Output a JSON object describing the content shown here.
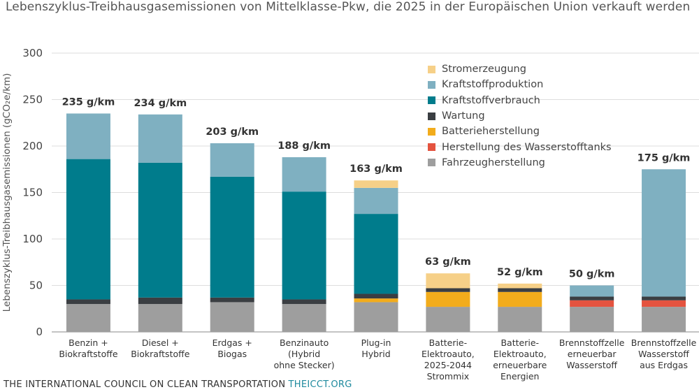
{
  "title": "Lebenszyklus-Treibhausgasemissionen von Mittelklasse-Pkw, die 2025 in der Europäischen Union verkauft werden",
  "footer": {
    "org": "THE INTERNATIONAL COUNCIL ON CLEAN TRANSPORTATION",
    "url": "THEICCT.ORG"
  },
  "chart_data": {
    "type": "bar",
    "stacked": true,
    "ylabel": "Lebenszyklus-Treibhausgasemissionen (gCO₂e/km)",
    "ylim": [
      0,
      300
    ],
    "yticks": [
      "0",
      "50",
      "100",
      "150",
      "200",
      "250",
      "300"
    ],
    "categories": [
      [
        "Benzin +",
        "Biokraftstoffe"
      ],
      [
        "Diesel +",
        "Biokraftstoffe"
      ],
      [
        "Erdgas +",
        "Biogas"
      ],
      [
        "Benzinauto",
        "(Hybrid",
        "ohne Stecker)"
      ],
      [
        "Plug-in",
        "Hybrid"
      ],
      [
        "Batterie-",
        "Elektroauto,",
        "2025-2044",
        "Strommix"
      ],
      [
        "Batterie-",
        "Elektroauto,",
        "erneuerbare",
        "Energien"
      ],
      [
        "Brennstoffzelle",
        "erneuerbar",
        "Wasserstoff"
      ],
      [
        "Brennstoffzelle",
        "Wasserstoff",
        "aus Erdgas"
      ]
    ],
    "totals": [
      "235 g/km",
      "234 g/km",
      "203 g/km",
      "188 g/km",
      "163 g/km",
      "63 g/km",
      "52 g/km",
      "50 g/km",
      "175 g/km"
    ],
    "total_values": [
      235,
      234,
      203,
      188,
      163,
      63,
      52,
      50,
      175
    ],
    "legend": [
      "Stromerzeugung",
      "Kraftstoffproduktion",
      "Kraftstoffverbrauch",
      "Wartung",
      "Batterieherstellung",
      "Herstellung des Wasserstofftanks",
      "Fahrzeugherstellung"
    ],
    "series": [
      {
        "name": "Fahrzeugherstellung",
        "color": "#9e9e9e",
        "values": [
          30,
          30,
          32,
          30,
          32,
          27,
          27,
          27,
          27
        ]
      },
      {
        "name": "Herstellung des Wasserstofftanks",
        "color": "#e4533f",
        "values": [
          0,
          0,
          0,
          0,
          0,
          0,
          0,
          7,
          7
        ]
      },
      {
        "name": "Batterieherstellung",
        "color": "#f2ac1c",
        "values": [
          0,
          0,
          0,
          0,
          4,
          16,
          16,
          0,
          0
        ]
      },
      {
        "name": "Wartung",
        "color": "#3a3e42",
        "values": [
          5,
          7,
          5,
          5,
          5,
          4,
          4,
          4,
          4
        ]
      },
      {
        "name": "Kraftstoffverbrauch",
        "color": "#007c8c",
        "values": [
          151,
          145,
          130,
          116,
          86,
          0,
          0,
          0,
          0
        ]
      },
      {
        "name": "Kraftstoffproduktion",
        "color": "#7fb0c1",
        "values": [
          49,
          52,
          36,
          37,
          28,
          0,
          0,
          12,
          137
        ]
      },
      {
        "name": "Stromerzeugung",
        "color": "#f6d088",
        "values": [
          0,
          0,
          0,
          0,
          8,
          16,
          5,
          0,
          0
        ]
      }
    ]
  }
}
